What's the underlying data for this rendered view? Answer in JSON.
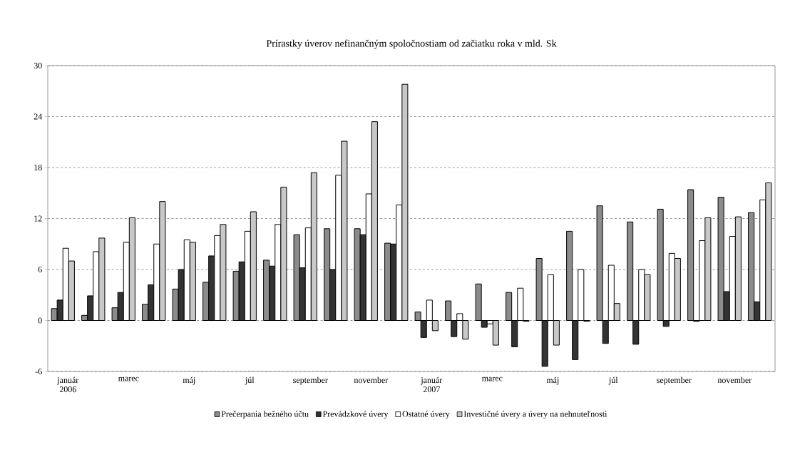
{
  "chart_data": {
    "type": "bar",
    "title": "Prírastky úverov nefinančným spoločnostiam od začiatku roka v mld. Sk",
    "categories": [
      "január 2006",
      null,
      "marec",
      null,
      "máj",
      null,
      "júl",
      null,
      "september",
      null,
      "november",
      null,
      "január 2007",
      null,
      "marec",
      null,
      "máj",
      null,
      "júl",
      null,
      "september",
      null,
      "november",
      null
    ],
    "series": [
      {
        "name": "Prečerpania bežného účtu",
        "color": "#8c8c8c",
        "values": [
          1.4,
          0.6,
          1.5,
          1.9,
          3.7,
          4.5,
          5.8,
          7.1,
          10.1,
          10.8,
          10.8,
          9.1,
          1.0,
          2.3,
          4.3,
          3.3,
          7.3,
          10.5,
          13.5,
          11.6,
          13.1,
          15.4,
          14.5,
          12.7
        ]
      },
      {
        "name": "Prevádzkové úvery",
        "color": "#333333",
        "values": [
          2.4,
          2.9,
          3.3,
          4.2,
          6.0,
          7.6,
          6.9,
          6.4,
          6.2,
          6.0,
          10.1,
          9.0,
          -2.0,
          -1.9,
          -0.8,
          -3.1,
          -5.4,
          -4.6,
          -2.7,
          -2.8,
          -0.7,
          -0.1,
          3.4,
          2.2
        ]
      },
      {
        "name": "Ostatné úvery",
        "color": "#ffffff",
        "values": [
          8.5,
          8.1,
          9.2,
          9.0,
          9.5,
          10.0,
          10.5,
          11.3,
          10.9,
          17.1,
          14.9,
          13.6,
          2.4,
          0.8,
          -0.4,
          3.8,
          5.4,
          6.0,
          6.5,
          6.0,
          7.9,
          9.4,
          9.9,
          14.2
        ]
      },
      {
        "name": "Investičné úvery a úvery na nehnuteľnosti",
        "color": "#c8c8c8",
        "values": [
          7.0,
          9.7,
          12.1,
          14.0,
          9.2,
          11.3,
          12.8,
          15.7,
          17.4,
          21.1,
          23.4,
          27.8,
          -1.2,
          -2.2,
          -2.9,
          -0.1,
          -2.9,
          -0.1,
          2.0,
          5.4,
          7.3,
          12.1,
          12.2,
          16.2
        ]
      }
    ],
    "ylim": [
      -6,
      30
    ],
    "yticks": [
      -6,
      0,
      6,
      12,
      18,
      24,
      30
    ],
    "grid": "y",
    "legend": "bottom"
  }
}
